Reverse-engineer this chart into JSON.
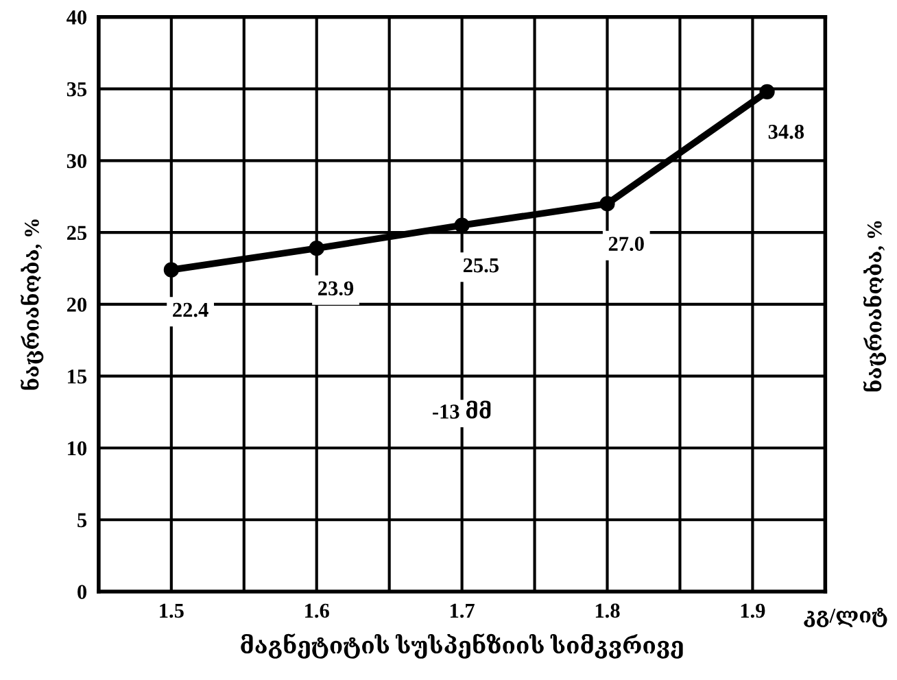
{
  "chart_data": {
    "type": "line",
    "xlabel": "მაგნეტიტის სუსპენზიის სიმკვრივე",
    "ylabel": "ნაცრიანობა, %",
    "y2label": "ნაცრიანობა, %",
    "annotations": [
      "-13 მმ",
      "კგ/ლიტ"
    ],
    "x": [
      1.5,
      1.6,
      1.7,
      1.8,
      1.91
    ],
    "series": [
      {
        "color": "#000000",
        "values": [
          22.4,
          23.9,
          25.5,
          27.0,
          34.8
        ]
      }
    ],
    "value_labels": [
      "22.4",
      "23.9",
      "25.5",
      "27.0",
      "34.8"
    ],
    "marker": "circle",
    "line_style": "solid",
    "xlim": [
      1.45,
      1.95
    ],
    "xticks": [
      {
        "value": 1.5,
        "label": "1.5"
      },
      {
        "value": 1.55,
        "label": null
      },
      {
        "value": 1.6,
        "label": "1.6"
      },
      {
        "value": 1.65,
        "label": null
      },
      {
        "value": 1.7,
        "label": "1.7"
      },
      {
        "value": 1.75,
        "label": null
      },
      {
        "value": 1.8,
        "label": "1.8"
      },
      {
        "value": 1.85,
        "label": null
      },
      {
        "value": 1.9,
        "label": "1.9"
      }
    ],
    "ylim": [
      0,
      40
    ],
    "yticks": [
      0,
      5,
      10,
      15,
      20,
      25,
      30,
      35,
      40
    ],
    "grid": true
  }
}
